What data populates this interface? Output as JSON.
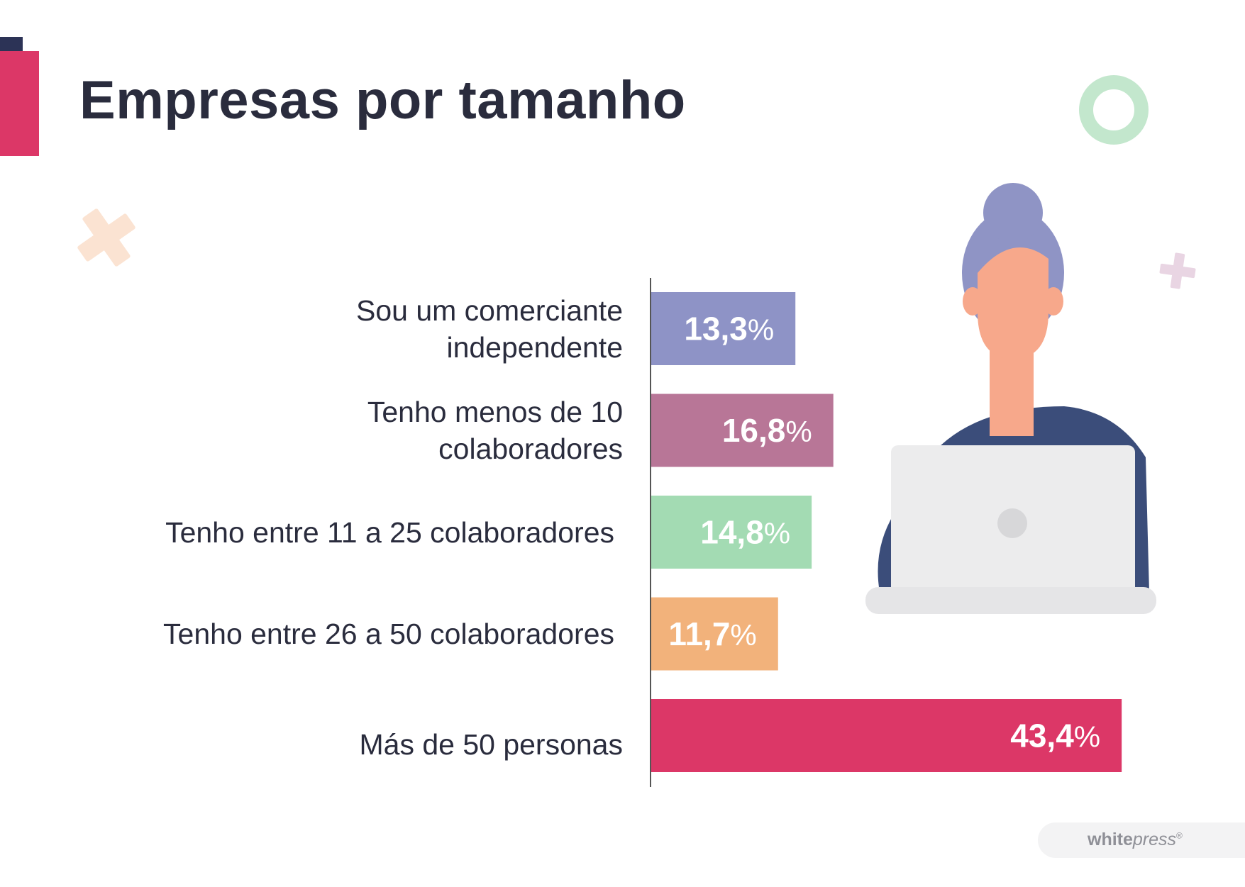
{
  "title": "Empresas por tamanho",
  "colors": {
    "title": "#2a2c3d",
    "accent_red": "#dc3767",
    "accent_dark": "#2c3356",
    "axis": "#555555"
  },
  "chart_data": {
    "type": "bar",
    "orientation": "horizontal",
    "title": "Empresas por tamanho",
    "xlabel": "",
    "ylabel": "",
    "xlim": [
      0,
      50
    ],
    "grid": false,
    "categories": [
      [
        "Sou um comerciante",
        "independente"
      ],
      [
        "Tenho menos de 10",
        "colaboradores"
      ],
      [
        "Tenho entre 11 a 25 colaboradores"
      ],
      [
        "Tenho entre 26 a 50 colaboradores"
      ],
      [
        "Más de 50 personas"
      ]
    ],
    "values": [
      13.3,
      16.8,
      14.8,
      11.7,
      43.4
    ],
    "value_labels": [
      "13,3",
      "16,8",
      "14,8",
      "11,7",
      "43,4"
    ],
    "value_suffix": "%",
    "bar_colors": [
      "#8e93c6",
      "#b87697",
      "#a3dbb3",
      "#f2b27b",
      "#dc3767"
    ]
  },
  "watermark": {
    "brand_bold": "white",
    "brand_italic": "press",
    "mark": "®"
  },
  "icons": [
    "ring-decoration",
    "cross-decoration",
    "woman-at-laptop-illustration"
  ]
}
